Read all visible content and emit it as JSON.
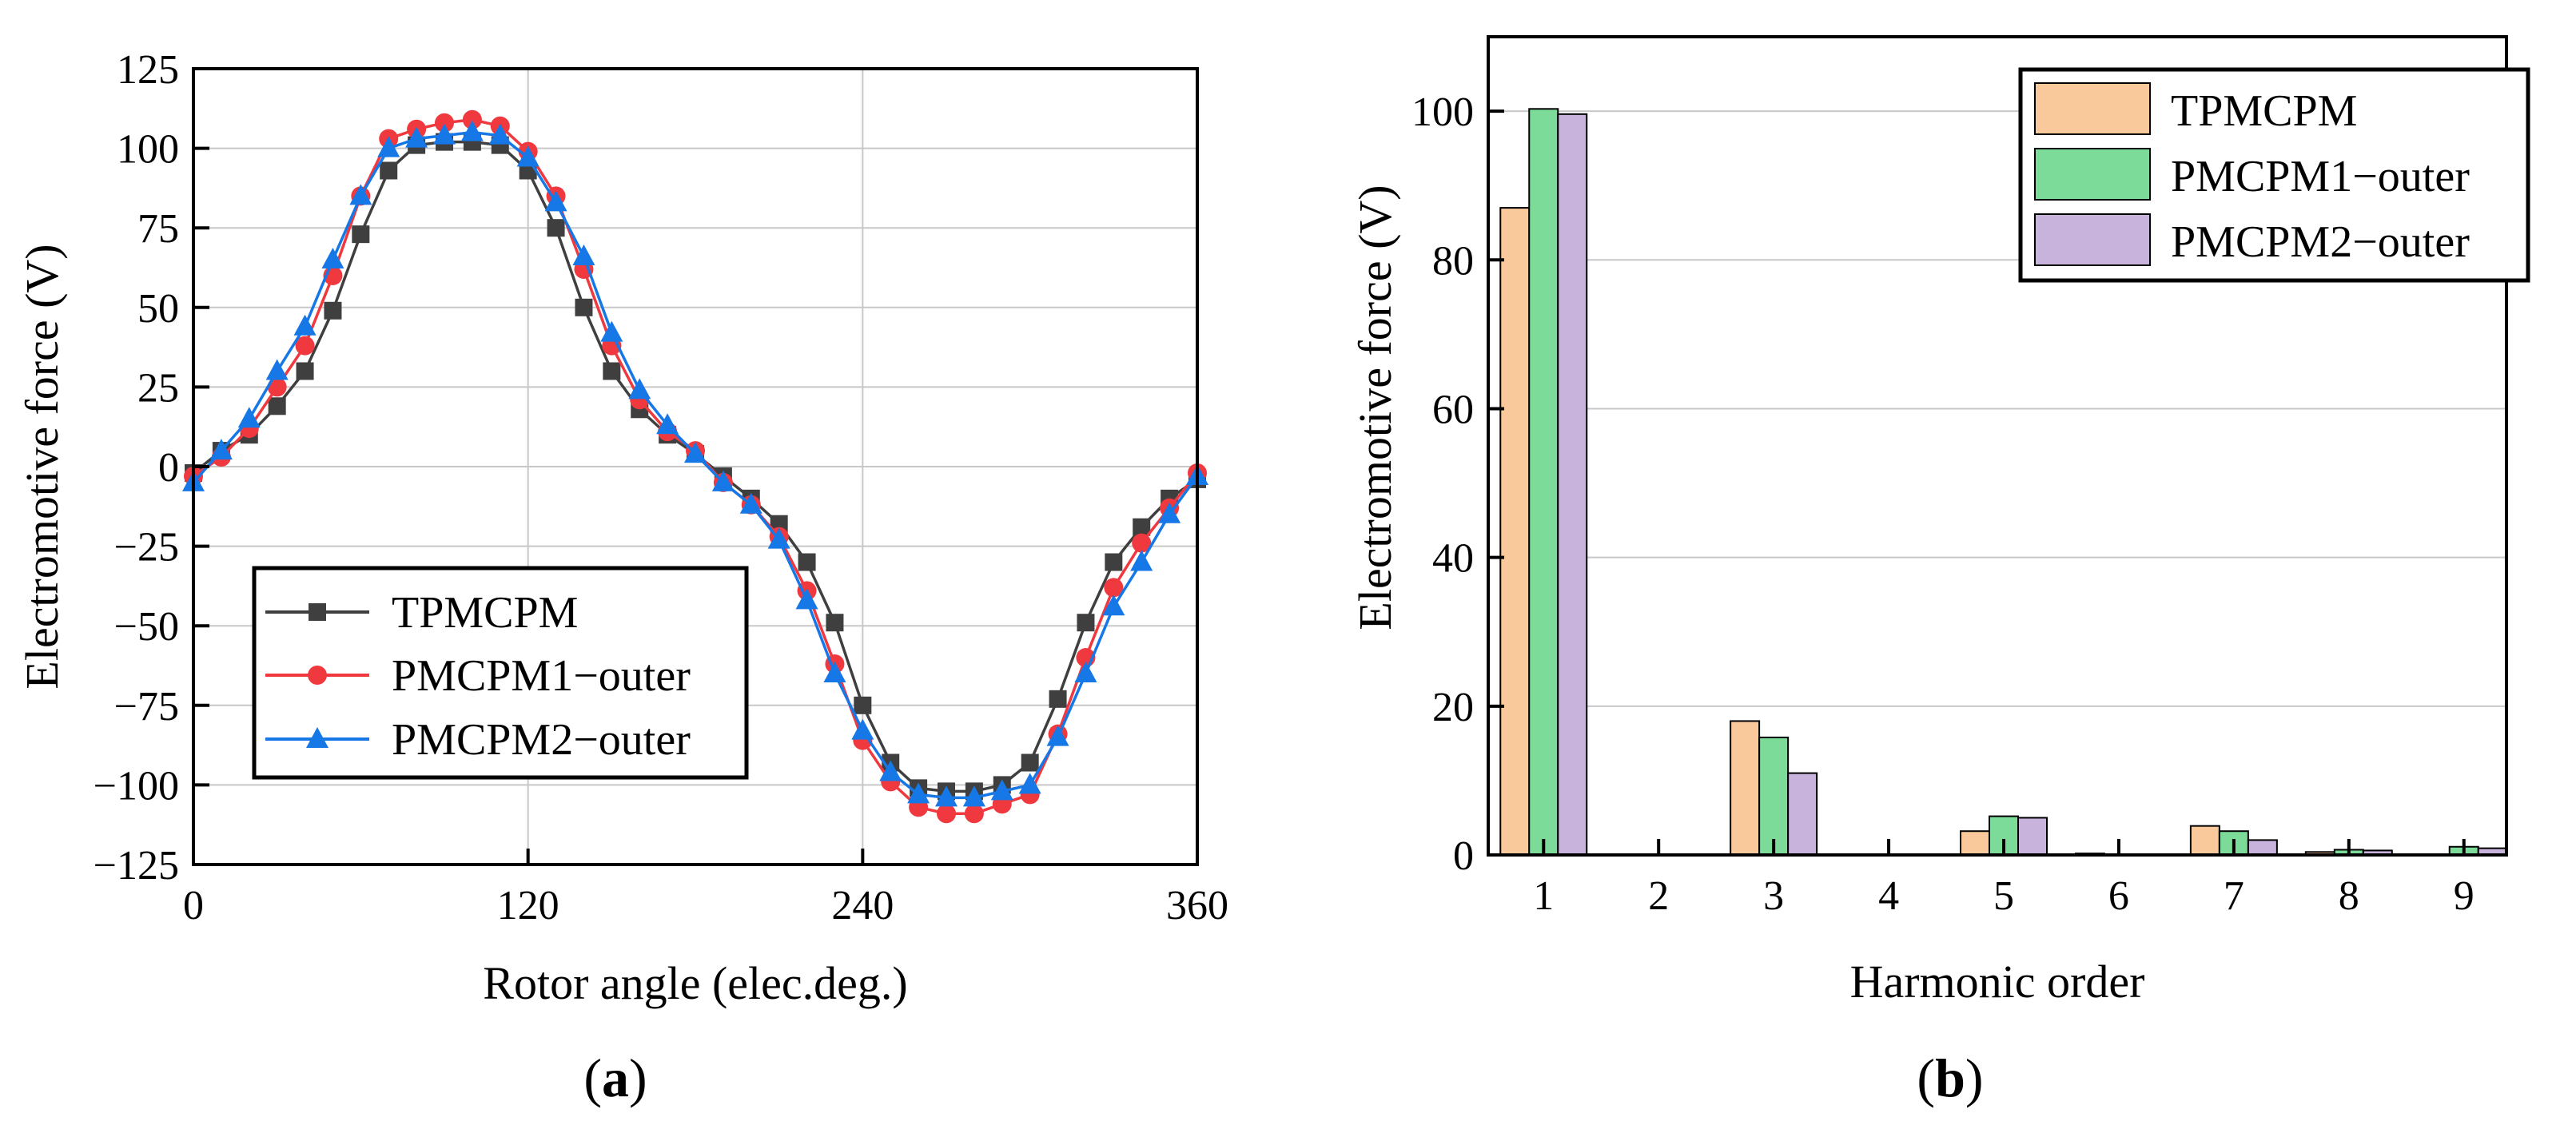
{
  "chart_data": [
    {
      "type": "line",
      "panel": "a",
      "caption": "(a)",
      "caption_letter": "a",
      "xlabel": "Rotor angle (elec.deg.)",
      "ylabel": "Electromotive force (V)",
      "xlim": [
        0,
        360
      ],
      "ylim": [
        -125,
        125
      ],
      "xticks": [
        0,
        120,
        240,
        360
      ],
      "yticks": [
        125,
        100,
        75,
        50,
        25,
        0,
        -25,
        -50,
        -75,
        -100,
        -125
      ],
      "grid": true,
      "legend_position": "bottom-left",
      "x": [
        0,
        10,
        20,
        30,
        40,
        50,
        60,
        70,
        80,
        90,
        100,
        110,
        120,
        130,
        140,
        150,
        160,
        170,
        180,
        190,
        200,
        210,
        220,
        230,
        240,
        250,
        260,
        270,
        280,
        290,
        300,
        310,
        320,
        330,
        340,
        350,
        360
      ],
      "series": [
        {
          "name": "TPMCPM",
          "color": "#3f3f3f",
          "marker": "square",
          "values": [
            -2,
            5,
            10,
            19,
            30,
            49,
            73,
            93,
            101,
            102,
            102,
            101,
            93,
            75,
            50,
            30,
            18,
            10,
            4,
            -3,
            -10,
            -18,
            -30,
            -49,
            -75,
            -93,
            -101,
            -102,
            -102,
            -100,
            -93,
            -73,
            -49,
            -30,
            -19,
            -10,
            -4
          ]
        },
        {
          "name": "PMCPM1−outer",
          "color": "#f0393f",
          "marker": "circle",
          "values": [
            -3,
            3,
            12,
            25,
            38,
            60,
            85,
            103,
            106,
            108,
            109,
            107,
            99,
            85,
            62,
            38,
            21,
            11,
            5,
            -5,
            -12,
            -22,
            -39,
            -62,
            -86,
            -99,
            -107,
            -109,
            -109,
            -106,
            -103,
            -84,
            -60,
            -38,
            -24,
            -13,
            -2
          ]
        },
        {
          "name": "PMCPM2−outer",
          "color": "#1677e6",
          "marker": "triangle",
          "values": [
            -5,
            5,
            15,
            30,
            44,
            65,
            85,
            100,
            103,
            104,
            105,
            104,
            97,
            83,
            66,
            42,
            24,
            13,
            4,
            -5,
            -12,
            -23,
            -42,
            -65,
            -83,
            -96,
            -103,
            -104,
            -104,
            -102,
            -100,
            -85,
            -65,
            -44,
            -30,
            -15,
            -3
          ]
        }
      ]
    },
    {
      "type": "bar",
      "panel": "b",
      "caption": "(b)",
      "caption_letter": "b",
      "xlabel": "Harmonic order",
      "ylabel": "Electromotive force (V)",
      "categories": [
        "1",
        "2",
        "3",
        "4",
        "5",
        "6",
        "7",
        "8",
        "9"
      ],
      "ylim": [
        0,
        110
      ],
      "yticks": [
        0,
        20,
        40,
        60,
        80,
        100
      ],
      "grid": true,
      "legend_position": "top-right",
      "series": [
        {
          "name": "TPMCPM",
          "color": "#f9c89b",
          "values": [
            87,
            0,
            18,
            0,
            3.2,
            0.2,
            3.9,
            0.4,
            0
          ]
        },
        {
          "name": "PMCPM1−outer",
          "color": "#7ddb99",
          "values": [
            100.3,
            0,
            15.8,
            0,
            5.2,
            0,
            3.2,
            0.7,
            1.1
          ]
        },
        {
          "name": "PMCPM2−outer",
          "color": "#c8b3dd",
          "values": [
            99.6,
            0,
            11,
            0,
            5,
            0,
            2,
            0.6,
            0.9
          ]
        }
      ]
    }
  ]
}
